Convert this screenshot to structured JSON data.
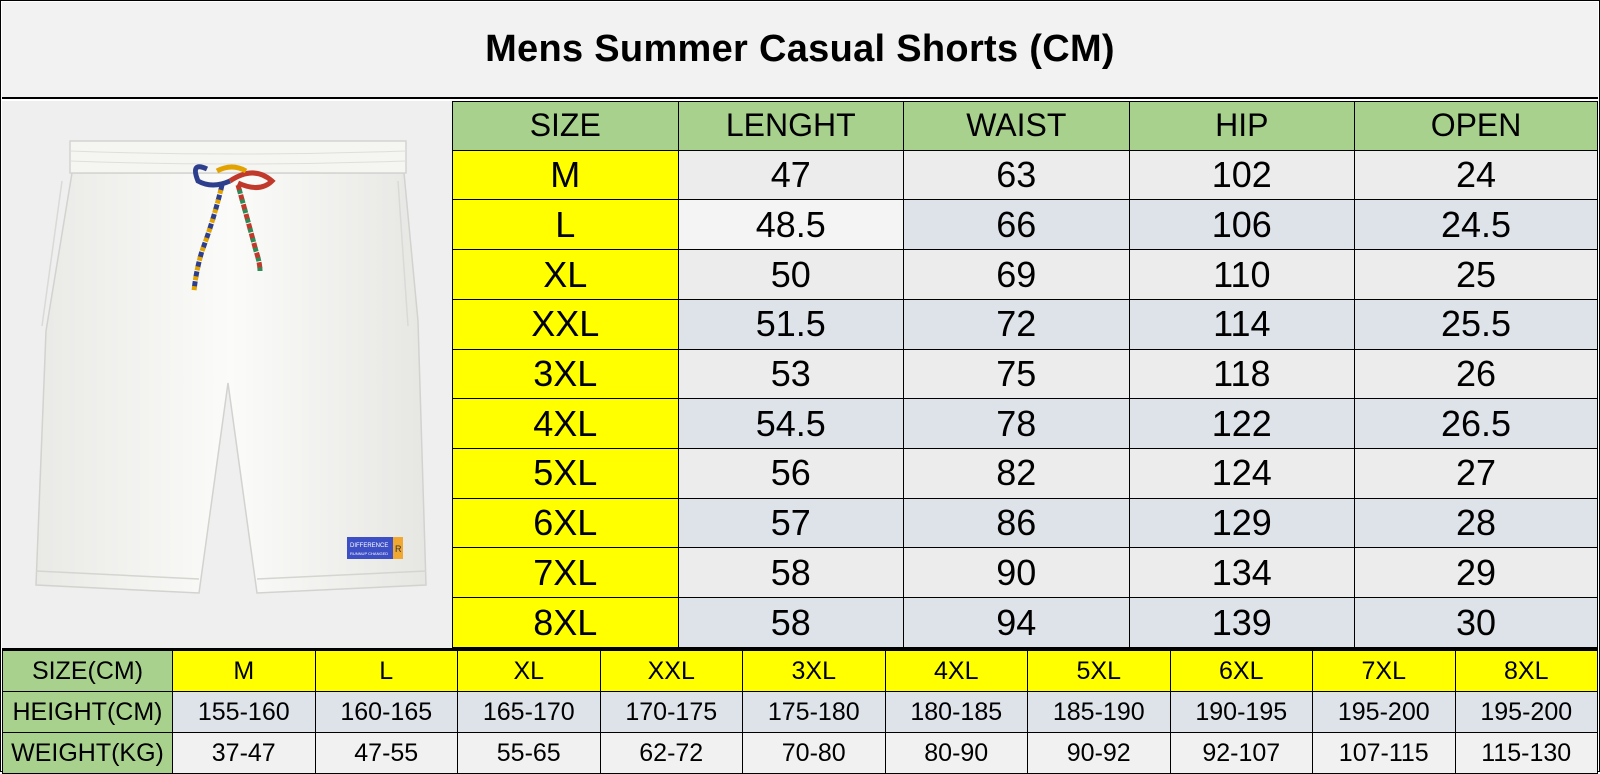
{
  "title": "Mens Summer Casual Shorts (CM)",
  "product_image": {
    "label_text_1": "DIFFERENCE",
    "label_text_2": "RUNNUP CHANGED",
    "tag_letter": "R"
  },
  "size_table": {
    "headers": [
      "SIZE",
      "LENGHT",
      "WAIST",
      "HIP",
      "OPEN"
    ],
    "rows": [
      [
        "M",
        "47",
        "63",
        "102",
        "24"
      ],
      [
        "L",
        "48.5",
        "66",
        "106",
        "24.5"
      ],
      [
        "XL",
        "50",
        "69",
        "110",
        "25"
      ],
      [
        "XXL",
        "51.5",
        "72",
        "114",
        "25.5"
      ],
      [
        "3XL",
        "53",
        "75",
        "118",
        "26"
      ],
      [
        "4XL",
        "54.5",
        "78",
        "122",
        "26.5"
      ],
      [
        "5XL",
        "56",
        "82",
        "124",
        "27"
      ],
      [
        "6XL",
        "57",
        "86",
        "129",
        "28"
      ],
      [
        "7XL",
        "58",
        "90",
        "134",
        "29"
      ],
      [
        "8XL",
        "58",
        "94",
        "139",
        "30"
      ]
    ]
  },
  "fit_table": {
    "size_label": "SIZE(CM)",
    "height_label": "HEIGHT(CM)",
    "weight_label": "WEIGHT(KG)",
    "sizes": [
      "M",
      "L",
      "XL",
      "XXL",
      "3XL",
      "4XL",
      "5XL",
      "6XL",
      "7XL",
      "8XL"
    ],
    "heights": [
      "155-160",
      "160-165",
      "165-170",
      "170-175",
      "175-180",
      "180-185",
      "185-190",
      "190-195",
      "195-200",
      "195-200"
    ],
    "weights": [
      "37-47",
      "47-55",
      "55-65",
      "62-72",
      "70-80",
      "80-90",
      "90-92",
      "92-107",
      "107-115",
      "115-130"
    ]
  },
  "colors": {
    "header_green": "#a9d18e",
    "size_yellow": "#ffff00",
    "cell_bluegray": "#dee3ea",
    "cell_light": "#ececec",
    "title_bg": "#f2f2f2"
  }
}
